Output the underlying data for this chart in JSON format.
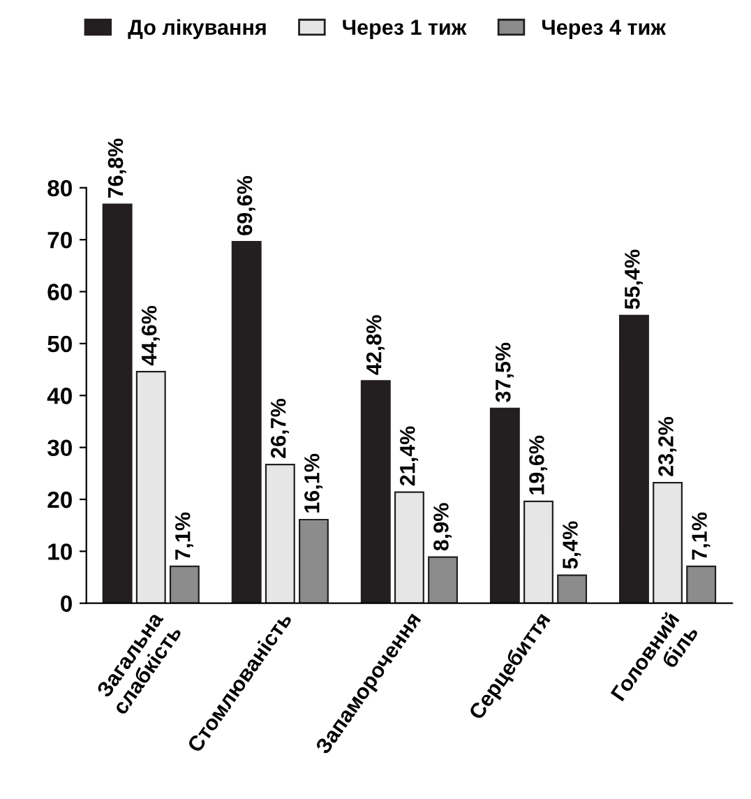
{
  "chart_data": {
    "type": "bar",
    "categories": [
      "Загальна\nслабкість",
      "Стомлюваність",
      "Запаморочення",
      "Серцебиття",
      "Головний\nбіль"
    ],
    "series": [
      {
        "name": "До лікування",
        "color": "#231f20",
        "values": [
          76.8,
          69.6,
          42.8,
          37.5,
          55.4
        ],
        "value_labels": [
          "76,8%",
          "69,6%",
          "42,8%",
          "37,5%",
          "55,4%"
        ]
      },
      {
        "name": "Через 1 тиж",
        "color": "#e6e6e6",
        "values": [
          44.6,
          26.7,
          21.4,
          19.6,
          23.2
        ],
        "value_labels": [
          "44,6%",
          "26,7%",
          "21,4%",
          "19,6%",
          "23,2%"
        ]
      },
      {
        "name": "Через 4 тиж",
        "color": "#8c8c8c",
        "values": [
          7.1,
          16.1,
          8.9,
          5.4,
          7.1
        ],
        "value_labels": [
          "7,1%",
          "16,1%",
          "8,9%",
          "5,4%",
          "7,1%"
        ]
      }
    ],
    "ylim": [
      0,
      80
    ],
    "yticks": [
      0,
      10,
      20,
      30,
      40,
      50,
      60,
      70,
      80
    ],
    "grid": false,
    "legend": "top"
  }
}
